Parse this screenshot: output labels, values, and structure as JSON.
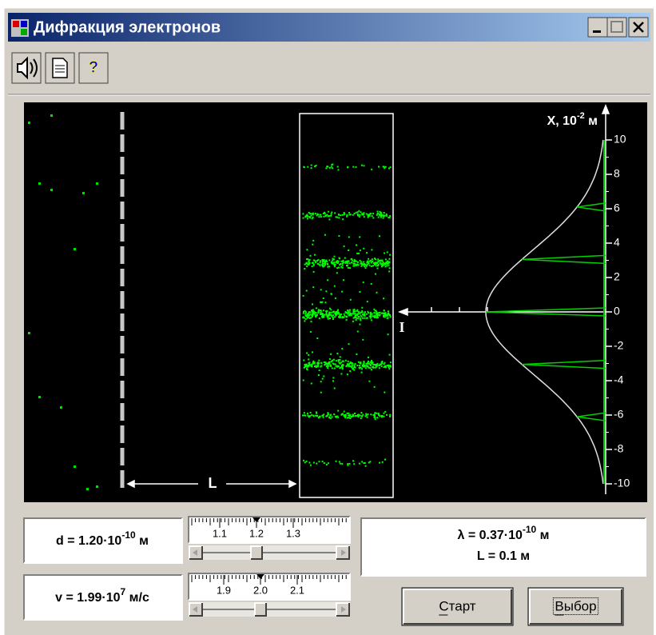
{
  "window": {
    "title": "Дифракция электронов"
  },
  "plot": {
    "axis_label": "X, 10",
    "axis_label_exp": "-2",
    "axis_label_unit": " м",
    "x_ticks": [
      10,
      8,
      6,
      4,
      2,
      0,
      -2,
      -4,
      -6,
      -8,
      -10
    ],
    "intensity_label": "I",
    "distance_label": "L"
  },
  "controls": {
    "d": {
      "text": "d = 1.20·10",
      "exp": "-10",
      "unit": " м",
      "scale": [
        "1.1",
        "1.2",
        "1.3"
      ]
    },
    "v": {
      "text": "v = 1.99·10",
      "exp": "7",
      "unit": " м/с",
      "scale": [
        "1.9",
        "2.0",
        "2.1"
      ]
    },
    "info": {
      "lambda_text": "λ = 0.37·10",
      "lambda_exp": "-10",
      "lambda_unit": " м",
      "L_text": "L = 0.1 м"
    },
    "buttons": [
      "Старт",
      "Выбор"
    ]
  }
}
